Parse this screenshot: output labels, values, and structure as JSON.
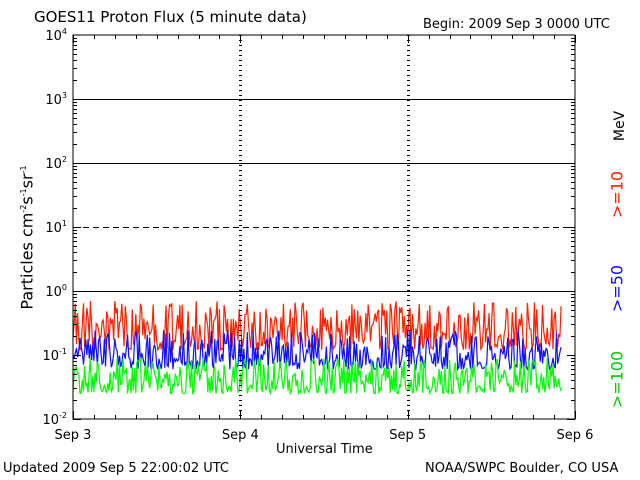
{
  "header": {
    "title": "GOES11 Proton Flux (5 minute data)",
    "begin": "Begin: 2009 Sep 3 0000 UTC"
  },
  "footer": {
    "updated": "Updated 2009 Sep  5 22:00:02 UTC",
    "source": "NOAA/SWPC Boulder, CO USA"
  },
  "legend": {
    "unit": "MeV",
    "entries": [
      {
        "label": ">=10",
        "color": "#ff2000"
      },
      {
        "label": ">=50",
        "color": "#1010ff"
      },
      {
        "label": ">=100",
        "color": "#00ff00"
      }
    ]
  },
  "chart_data": {
    "type": "line",
    "title": "GOES11 Proton Flux (5 minute data)",
    "xlabel": "Universal Time",
    "ylabel_parts": [
      "Particles cm",
      "-2",
      "s",
      "-1",
      "sr",
      "-1"
    ],
    "yscale": "log",
    "ylim": [
      0.01,
      10000
    ],
    "y_ticks": [
      {
        "base": "10",
        "exp": "-2",
        "value": 0.01
      },
      {
        "base": "10",
        "exp": "-1",
        "value": 0.1
      },
      {
        "base": "10",
        "exp": "0",
        "value": 1
      },
      {
        "base": "10",
        "exp": "1",
        "value": 10
      },
      {
        "base": "10",
        "exp": "2",
        "value": 100
      },
      {
        "base": "10",
        "exp": "3",
        "value": 1000
      },
      {
        "base": "10",
        "exp": "4",
        "value": 10000
      }
    ],
    "x_ticks": [
      "Sep 3",
      "Sep 4",
      "Sep 5",
      "Sep 6"
    ],
    "xlim_days": [
      0,
      3
    ],
    "data_end_day": 2.917,
    "reference_lines": [
      {
        "value": 1,
        "style": "solid"
      },
      {
        "value": 10,
        "style": "dashed"
      },
      {
        "value": 100,
        "style": "solid"
      },
      {
        "value": 1000,
        "style": "solid"
      }
    ],
    "series": [
      {
        "name": ">=10 MeV",
        "color": "#ff2000",
        "min": 0.12,
        "max": 0.7
      },
      {
        "name": ">=50 MeV",
        "color": "#1010ff",
        "min": 0.06,
        "max": 0.25
      },
      {
        "name": ">=100 MeV",
        "color": "#00ff00",
        "min": 0.025,
        "max": 0.09
      }
    ]
  }
}
